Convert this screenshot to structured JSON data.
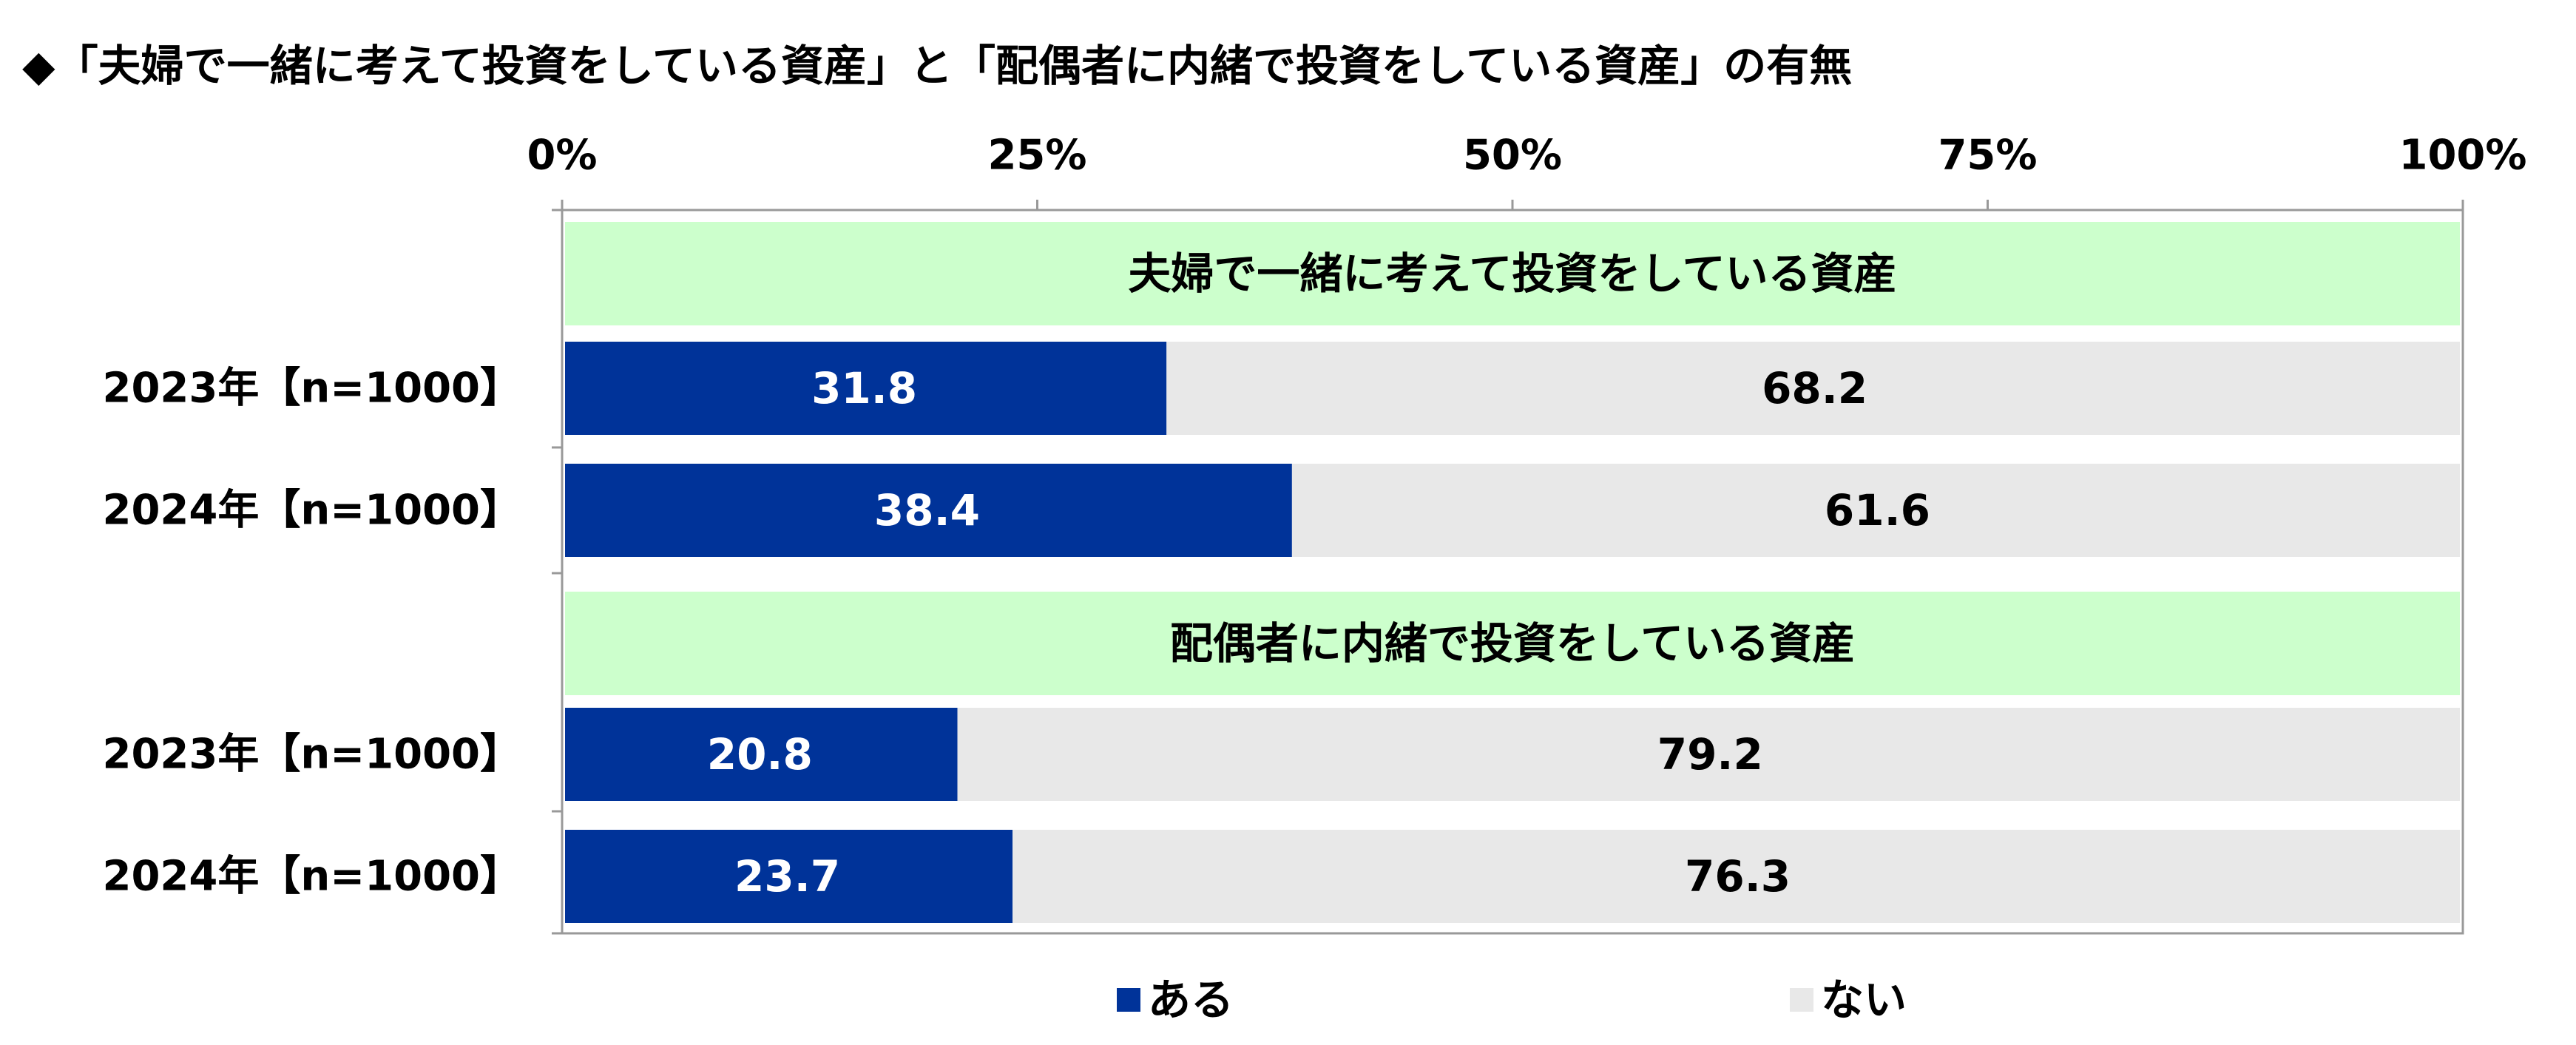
{
  "title": "◆「夫婦で一緒に考えて投資をしている資産」と「配偶者に内緒で投資をしている資産」の有無",
  "colors": {
    "aru": "#003399",
    "nai": "#e8e8e8",
    "group_band": "#ccffcc",
    "axis": "#999999"
  },
  "chart_data": {
    "type": "bar",
    "orientation": "horizontal",
    "stacked": true,
    "title": "◆「夫婦で一緒に考えて投資をしている資産」と「配偶者に内緒で投資をしている資産」の有無",
    "xlim": [
      0,
      100
    ],
    "ticks": [
      "0%",
      "25%",
      "50%",
      "75%",
      "100%"
    ],
    "tick_values": [
      0,
      25,
      50,
      75,
      100
    ],
    "legend": [
      "ある",
      "ない"
    ],
    "legend_position": "bottom",
    "groups": [
      {
        "label": "夫婦で一緒に考えて投資をしている資産",
        "rows": [
          {
            "label": "2023年【n=1000】",
            "aru": 31.8,
            "nai": 68.2,
            "aru_text": "31.8",
            "nai_text": "68.2"
          },
          {
            "label": "2024年【n=1000】",
            "aru": 38.4,
            "nai": 61.6,
            "aru_text": "38.4",
            "nai_text": "61.6"
          }
        ]
      },
      {
        "label": "配偶者に内緒で投資をしている資産",
        "rows": [
          {
            "label": "2023年【n=1000】",
            "aru": 20.8,
            "nai": 79.2,
            "aru_text": "20.8",
            "nai_text": "79.2"
          },
          {
            "label": "2024年【n=1000】",
            "aru": 23.7,
            "nai": 76.3,
            "aru_text": "23.7",
            "nai_text": "76.3"
          }
        ]
      }
    ]
  }
}
